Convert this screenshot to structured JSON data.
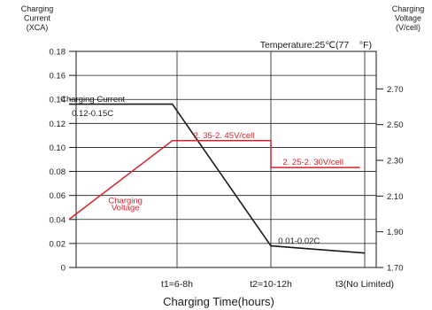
{
  "chart_data": {
    "type": "line",
    "left_axis": {
      "label_lines": [
        "Charging",
        "Current",
        "(XCA)"
      ],
      "range": [
        0,
        0.18
      ],
      "ticks": [
        0,
        0.02,
        0.04,
        0.06,
        0.08,
        0.1,
        0.12,
        0.14,
        0.16,
        0.18
      ],
      "tick_labels": [
        "0",
        "0.02",
        "0.04",
        "0.06",
        "0.08",
        "0.10",
        "0.12",
        "0.14",
        "0.16",
        "0.18"
      ]
    },
    "right_axis": {
      "label_lines": [
        "Charging",
        "Voltage",
        "(V/cell)"
      ],
      "range": [
        1.7,
        2.91
      ],
      "ticks": [
        1.7,
        1.9,
        2.1,
        2.3,
        2.5,
        2.7
      ],
      "tick_labels": [
        "1.70",
        "1.90",
        "2.10",
        "2.30",
        "2.50",
        "2.70"
      ]
    },
    "x_axis": {
      "label": "Charging Time(hours)",
      "range": [
        0,
        3
      ],
      "ticks": [
        1,
        2,
        3
      ],
      "tick_labels": [
        "t1=6-8h",
        "t2=10-12h",
        "t3(No Limited)"
      ]
    },
    "temperature_label": "Temperature:25℃(77    °F)",
    "grid": true,
    "series": [
      {
        "name": "Charging Current",
        "axis": "left",
        "color": "#1a1a1a",
        "points": [
          [
            -0.15,
            0.136
          ],
          [
            0.95,
            0.136
          ],
          [
            2.0,
            0.018
          ],
          [
            3.0,
            0.012
          ]
        ],
        "labels": [
          {
            "text": "Charging Current",
            "x": 0.1,
            "y": 0.138
          },
          {
            "text": "0.12-0.15C",
            "x": 0.1,
            "y": 0.126
          },
          {
            "text": "0.01-0.02C",
            "x": 2.3,
            "y": 0.02
          }
        ]
      },
      {
        "name": "Charging Voltage",
        "axis": "right",
        "color": "#d4232f",
        "points": [
          [
            -0.15,
            1.97
          ],
          [
            0.95,
            2.41
          ],
          [
            2.0,
            2.41
          ],
          [
            2.0,
            2.26
          ],
          [
            2.95,
            2.26
          ]
        ],
        "labels": [
          {
            "text": "2. 35-2. 45V/cell",
            "x": 1.5,
            "y": 2.425
          },
          {
            "text": "2. 25-2. 30V/cell",
            "x": 2.45,
            "y": 2.275
          },
          {
            "text": "Charging",
            "x": 0.45,
            "y": 2.06
          },
          {
            "text": "Voltage",
            "x": 0.45,
            "y": 2.02
          }
        ]
      }
    ]
  }
}
